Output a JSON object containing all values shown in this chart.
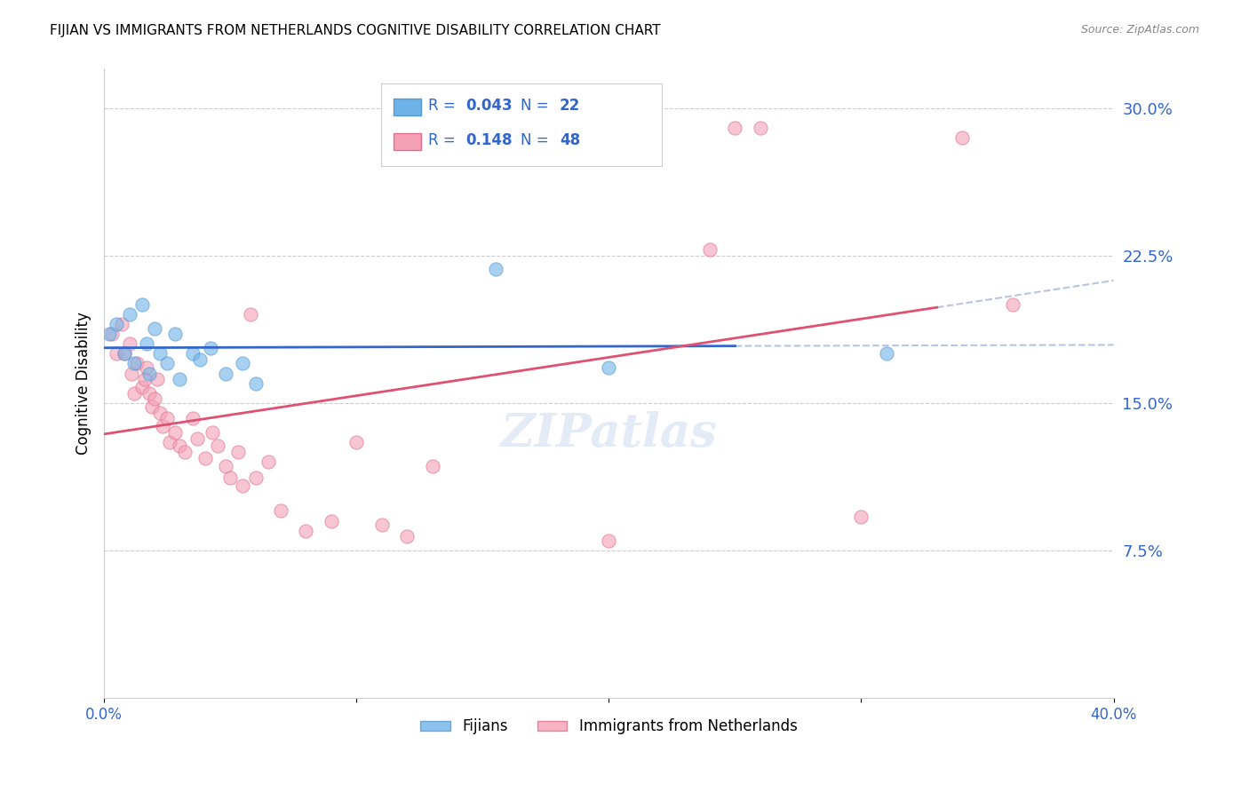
{
  "title": "FIJIAN VS IMMIGRANTS FROM NETHERLANDS COGNITIVE DISABILITY CORRELATION CHART",
  "source": "Source: ZipAtlas.com",
  "ylabel": "Cognitive Disability",
  "right_yticks": [
    7.5,
    15.0,
    22.5,
    30.0
  ],
  "xmin": 0.0,
  "xmax": 0.4,
  "ymin": 0.0,
  "ymax": 0.32,
  "fijian_color": "#6eb3e8",
  "fijian_edge": "#5599d0",
  "netherlands_color": "#f4a0b5",
  "netherlands_edge": "#e07090",
  "fijian_R": 0.043,
  "fijian_N": 22,
  "netherlands_R": 0.148,
  "netherlands_N": 48,
  "fijian_points_x": [
    0.002,
    0.005,
    0.008,
    0.01,
    0.012,
    0.015,
    0.017,
    0.018,
    0.02,
    0.022,
    0.025,
    0.028,
    0.03,
    0.035,
    0.038,
    0.042,
    0.048,
    0.055,
    0.06,
    0.155,
    0.2,
    0.31
  ],
  "fijian_points_y": [
    0.185,
    0.19,
    0.175,
    0.195,
    0.17,
    0.2,
    0.18,
    0.165,
    0.188,
    0.175,
    0.17,
    0.185,
    0.162,
    0.175,
    0.172,
    0.178,
    0.165,
    0.17,
    0.16,
    0.218,
    0.168,
    0.175
  ],
  "netherlands_points_x": [
    0.003,
    0.005,
    0.007,
    0.008,
    0.01,
    0.011,
    0.012,
    0.013,
    0.015,
    0.016,
    0.017,
    0.018,
    0.019,
    0.02,
    0.021,
    0.022,
    0.023,
    0.025,
    0.026,
    0.028,
    0.03,
    0.032,
    0.035,
    0.037,
    0.04,
    0.043,
    0.045,
    0.048,
    0.05,
    0.053,
    0.055,
    0.058,
    0.06,
    0.065,
    0.07,
    0.08,
    0.09,
    0.1,
    0.11,
    0.12,
    0.13,
    0.2,
    0.24,
    0.25,
    0.26,
    0.3,
    0.34,
    0.36
  ],
  "netherlands_points_y": [
    0.185,
    0.175,
    0.19,
    0.175,
    0.18,
    0.165,
    0.155,
    0.17,
    0.158,
    0.162,
    0.168,
    0.155,
    0.148,
    0.152,
    0.162,
    0.145,
    0.138,
    0.142,
    0.13,
    0.135,
    0.128,
    0.125,
    0.142,
    0.132,
    0.122,
    0.135,
    0.128,
    0.118,
    0.112,
    0.125,
    0.108,
    0.195,
    0.112,
    0.12,
    0.095,
    0.085,
    0.09,
    0.13,
    0.088,
    0.082,
    0.118,
    0.08,
    0.228,
    0.29,
    0.29,
    0.092,
    0.285,
    0.2
  ],
  "watermark": "ZIPatlas",
  "marker_size": 120,
  "alpha": 0.6
}
